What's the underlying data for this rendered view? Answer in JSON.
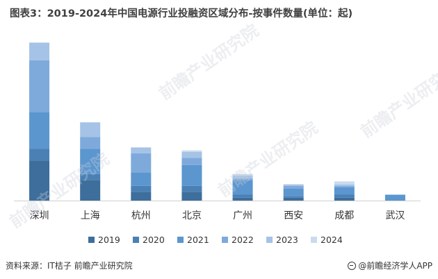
{
  "title": "图表3：2019-2024年中国电源行业投融资区域分布-按事件数量(单位：起)",
  "footer": {
    "source": "资料来源：IT桔子 前瞻产业研究院",
    "brand": "@前瞻经济学人APP"
  },
  "watermark": "前瞻产业研究院",
  "chart_data": {
    "type": "bar",
    "stacked": true,
    "title": "图表3：2019-2024年中国电源行业投融资区域分布-按事件数量(单位：起)",
    "categories": [
      "深圳",
      "上海",
      "杭州",
      "北京",
      "广州",
      "西安",
      "成都",
      "武汉"
    ],
    "series": [
      {
        "name": "2019",
        "color": "#3d6e9c",
        "values": [
          27,
          14,
          6,
          6,
          2,
          2,
          2,
          0
        ]
      },
      {
        "name": "2020",
        "color": "#4b80b5",
        "values": [
          8,
          4,
          4,
          4,
          2,
          1,
          2,
          0
        ]
      },
      {
        "name": "2021",
        "color": "#5b96cf",
        "values": [
          25,
          17,
          9,
          14,
          10,
          5,
          5,
          4
        ]
      },
      {
        "name": "2022",
        "color": "#7eaadb",
        "values": [
          35,
          8,
          13,
          5,
          1,
          2,
          1,
          0
        ]
      },
      {
        "name": "2023",
        "color": "#a5c3e6",
        "values": [
          12,
          10,
          4,
          4,
          2,
          1,
          1,
          0
        ]
      },
      {
        "name": "2024",
        "color": "#c9dbee",
        "values": [
          0,
          0,
          0,
          1,
          1,
          0,
          2,
          0
        ]
      }
    ],
    "ylim": [
      0,
      110
    ],
    "grid": false,
    "legend": "bottom"
  }
}
